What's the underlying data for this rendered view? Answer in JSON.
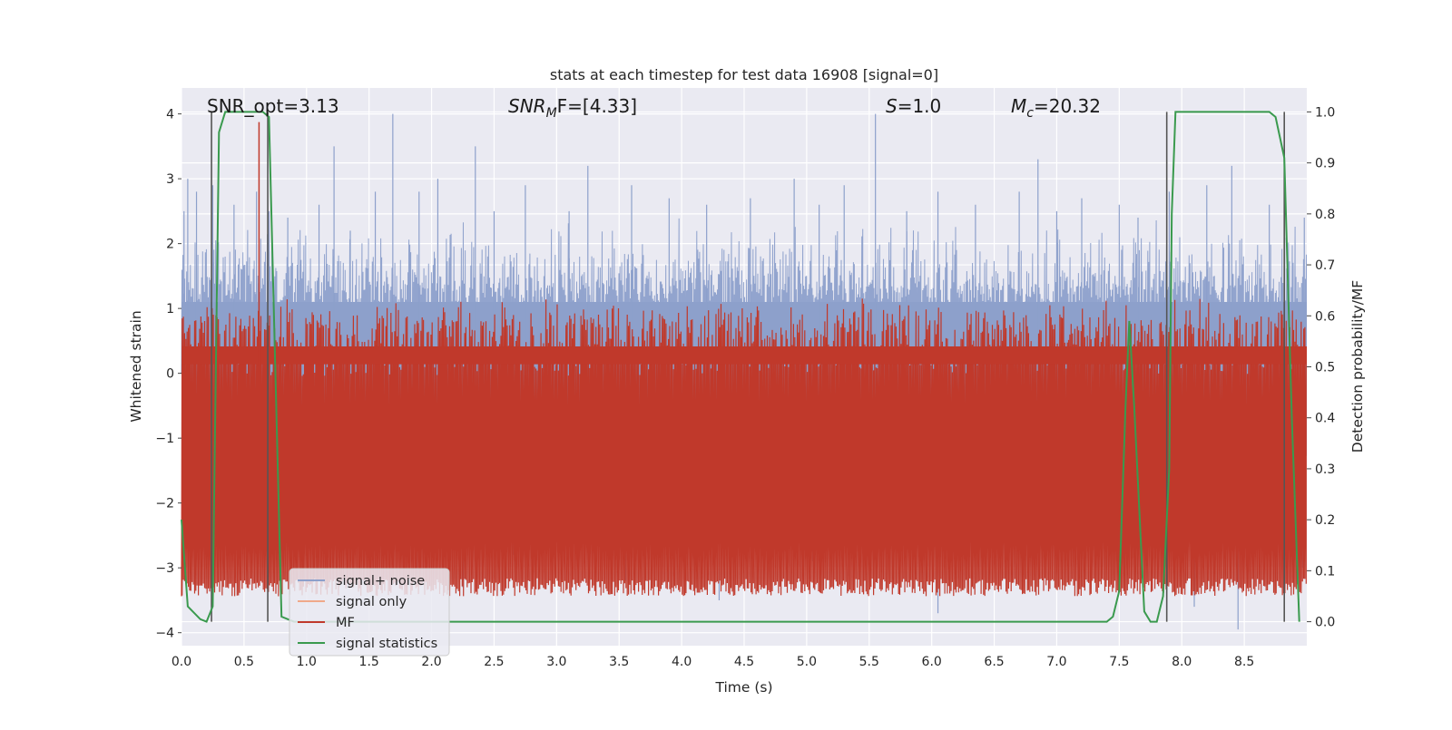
{
  "chart_data": {
    "type": "line",
    "title": "stats at each timestep for test data 16908 [signal=0]",
    "xlabel": "Time (s)",
    "ylabel": "Whitened strain",
    "y2label": "Detection probability/MF",
    "xlim": [
      0.0,
      9.0
    ],
    "ylim": [
      -4.2,
      4.4
    ],
    "y2lim": [
      -0.047,
      1.047
    ],
    "grid": true,
    "x_ticks": [
      0.0,
      0.5,
      1.0,
      1.5,
      2.0,
      2.5,
      3.0,
      3.5,
      4.0,
      4.5,
      5.0,
      5.5,
      6.0,
      6.5,
      7.0,
      7.5,
      8.0,
      8.5
    ],
    "x_tick_labels": [
      "0.0",
      "0.5",
      "1.0",
      "1.5",
      "2.0",
      "2.5",
      "3.0",
      "3.5",
      "4.0",
      "4.5",
      "5.0",
      "5.5",
      "6.0",
      "6.5",
      "7.0",
      "7.5",
      "8.0",
      "8.5"
    ],
    "y_ticks": [
      4,
      3,
      2,
      1,
      0,
      -1,
      -2,
      -3,
      -4
    ],
    "y_tick_labels": [
      "4",
      "3",
      "2",
      "1",
      "0",
      "−1",
      "−2",
      "−3",
      "−4"
    ],
    "y2_ticks": [
      1.0,
      0.9,
      0.8,
      0.7,
      0.6,
      0.5,
      0.4,
      0.3,
      0.2,
      0.1,
      0.0
    ],
    "y2_tick_labels": [
      "1.0",
      "0.9",
      "0.8",
      "0.7",
      "0.6",
      "0.5",
      "0.4",
      "0.3",
      "0.2",
      "0.1",
      "0.0"
    ],
    "annotations": {
      "snr_opt": "SNR_opt=3.13",
      "snr_mf_main": "SNR",
      "snr_mf_sub": "M",
      "snr_mf_rest": "F=[4.33]",
      "s_italic": "S",
      "s_rest": "=1.0",
      "mc_main": "M",
      "mc_sub": "c",
      "mc_rest": "=20.32"
    },
    "legend": {
      "location": "lower-left",
      "entries": [
        "signal+ noise",
        "signal only",
        "MF",
        "signal statistics"
      ],
      "colors": [
        "#8da0cb",
        "#f0a98a",
        "#c0392b",
        "#3a9a4e"
      ]
    },
    "noise_envelope": {
      "upper_typical": 1.6,
      "lower_typical": -1.6,
      "max": 4.0,
      "min": -3.95,
      "spikes": [
        {
          "x": 0.02,
          "y": 2.5
        },
        {
          "x": 0.05,
          "y": 3.0
        },
        {
          "x": 0.12,
          "y": 2.8
        },
        {
          "x": 0.25,
          "y": 2.9
        },
        {
          "x": 0.42,
          "y": 2.6
        },
        {
          "x": 0.6,
          "y": 2.8
        },
        {
          "x": 0.7,
          "y": 2.5
        },
        {
          "x": 0.85,
          "y": 2.4
        },
        {
          "x": 1.1,
          "y": 2.6
        },
        {
          "x": 1.22,
          "y": 3.5
        },
        {
          "x": 1.35,
          "y": 2.2
        },
        {
          "x": 1.55,
          "y": 2.8
        },
        {
          "x": 1.69,
          "y": 4.0
        },
        {
          "x": 1.9,
          "y": 2.8
        },
        {
          "x": 2.05,
          "y": 3.0
        },
        {
          "x": 2.35,
          "y": 3.5
        },
        {
          "x": 2.5,
          "y": 2.5
        },
        {
          "x": 2.75,
          "y": 2.9
        },
        {
          "x": 3.1,
          "y": 2.5
        },
        {
          "x": 3.25,
          "y": 3.2
        },
        {
          "x": 3.6,
          "y": 2.9
        },
        {
          "x": 3.9,
          "y": 2.7
        },
        {
          "x": 4.2,
          "y": 2.6
        },
        {
          "x": 4.55,
          "y": 2.7
        },
        {
          "x": 4.9,
          "y": 3.0
        },
        {
          "x": 5.1,
          "y": 2.6
        },
        {
          "x": 5.3,
          "y": 2.9
        },
        {
          "x": 5.55,
          "y": 4.0
        },
        {
          "x": 5.8,
          "y": 2.5
        },
        {
          "x": 6.05,
          "y": 2.8
        },
        {
          "x": 6.35,
          "y": 2.6
        },
        {
          "x": 6.7,
          "y": 2.8
        },
        {
          "x": 6.85,
          "y": 3.3
        },
        {
          "x": 7.0,
          "y": 2.5
        },
        {
          "x": 7.2,
          "y": 2.7
        },
        {
          "x": 7.5,
          "y": 2.6
        },
        {
          "x": 7.65,
          "y": 2.4
        },
        {
          "x": 7.9,
          "y": 2.8
        },
        {
          "x": 8.2,
          "y": 2.9
        },
        {
          "x": 8.4,
          "y": 3.2
        },
        {
          "x": 8.7,
          "y": 2.6
        },
        {
          "x": 8.98,
          "y": 2.4
        },
        {
          "x": 0.08,
          "y": -2.4
        },
        {
          "x": 0.55,
          "y": -2.6
        },
        {
          "x": 1.35,
          "y": -2.9
        },
        {
          "x": 1.88,
          "y": -3.1
        },
        {
          "x": 2.25,
          "y": -3.3
        },
        {
          "x": 2.65,
          "y": -2.8
        },
        {
          "x": 3.55,
          "y": -3.2
        },
        {
          "x": 4.3,
          "y": -3.5
        },
        {
          "x": 5.05,
          "y": -2.9
        },
        {
          "x": 5.6,
          "y": -2.8
        },
        {
          "x": 6.05,
          "y": -3.7
        },
        {
          "x": 6.55,
          "y": -2.8
        },
        {
          "x": 7.0,
          "y": -3.0
        },
        {
          "x": 7.45,
          "y": -3.1
        },
        {
          "x": 8.1,
          "y": -3.6
        },
        {
          "x": 8.45,
          "y": -3.95
        },
        {
          "x": 8.75,
          "y": -3.2
        },
        {
          "x": 8.97,
          "y": -3.0
        }
      ]
    },
    "mf_band": {
      "lower": 0.05,
      "upper_typical": 0.6,
      "peak": 0.98
    },
    "signal_statistics": {
      "axis": "right",
      "x": [
        0.0,
        0.05,
        0.15,
        0.2,
        0.25,
        0.3,
        0.35,
        0.4,
        0.5,
        0.6,
        0.65,
        0.7,
        0.75,
        0.8,
        0.85,
        0.9,
        1.0,
        2.0,
        3.0,
        4.0,
        5.0,
        6.0,
        7.0,
        7.4,
        7.45,
        7.5,
        7.55,
        7.58,
        7.62,
        7.7,
        7.75,
        7.8,
        7.85,
        7.9,
        7.92,
        7.95,
        8.0,
        8.2,
        8.5,
        8.7,
        8.75,
        8.82,
        8.88,
        8.94
      ],
      "y": [
        0.2,
        0.03,
        0.005,
        0.0,
        0.03,
        0.96,
        1.0,
        1.0,
        1.0,
        1.0,
        1.0,
        0.99,
        0.5,
        0.01,
        0.005,
        0.0,
        0.0,
        0.0,
        0.0,
        0.0,
        0.0,
        0.0,
        0.0,
        0.0,
        0.01,
        0.06,
        0.42,
        0.59,
        0.42,
        0.02,
        0.0,
        0.0,
        0.05,
        0.3,
        0.8,
        1.0,
        1.0,
        1.0,
        1.0,
        1.0,
        0.99,
        0.91,
        0.4,
        0.0
      ]
    },
    "vertical_markers_x": [
      0.24,
      0.69,
      7.88,
      8.82
    ]
  }
}
